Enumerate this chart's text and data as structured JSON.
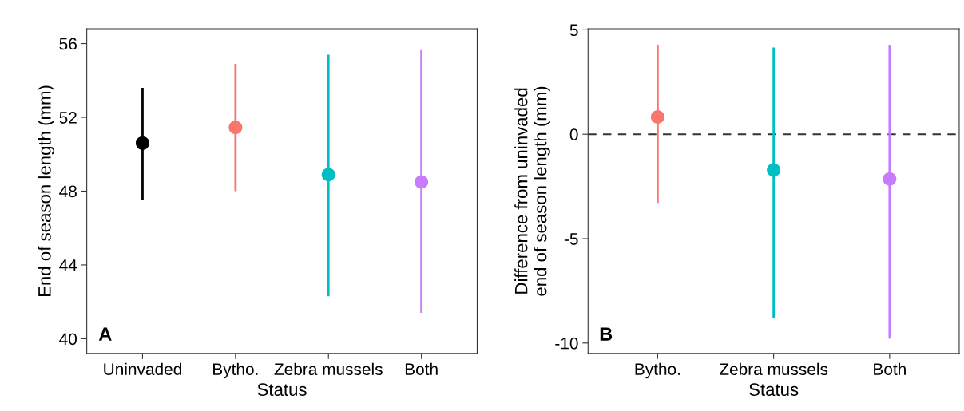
{
  "chart_data": [
    {
      "type": "scatter",
      "xlabel": "Status",
      "ylabel": "End of season length (mm)",
      "annotations": [
        "A"
      ],
      "categories": [
        "Uninvaded",
        "Bytho.",
        "Zebra mussels",
        "Both"
      ],
      "values": [
        50.6,
        51.45,
        48.9,
        48.5
      ],
      "colors": [
        "#000000",
        "#f8766d",
        "#00bfc4",
        "#c77cff"
      ],
      "errors": [
        [
          47.55,
          53.6
        ],
        [
          48.0,
          54.9
        ],
        [
          42.3,
          55.4
        ],
        [
          41.4,
          55.65
        ]
      ],
      "ylim": [
        39.2,
        56.8
      ],
      "yticks": [
        40,
        44,
        48,
        52,
        56
      ],
      "grid": false,
      "marker": "circle"
    },
    {
      "type": "scatter",
      "xlabel": "Status",
      "ylabel": "Difference from uninvaded\nend of season length (mm)",
      "annotations": [
        "B"
      ],
      "categories": [
        "Bytho.",
        "Zebra mussels",
        "Both"
      ],
      "values": [
        0.83,
        -1.71,
        -2.14
      ],
      "colors": [
        "#f8766d",
        "#00bfc4",
        "#c77cff"
      ],
      "errors": [
        [
          -3.29,
          4.29
        ],
        [
          -8.82,
          4.15
        ],
        [
          -9.79,
          4.25
        ]
      ],
      "ylim": [
        -10.5,
        5.05
      ],
      "yticks": [
        {
          "value": -10,
          "label": "-10"
        },
        {
          "value": -5,
          "label": "-5"
        },
        0,
        5
      ],
      "ref_lines": [
        {
          "axis": "y",
          "value": 0,
          "color": "#333333",
          "line_style": "dashed"
        }
      ],
      "grid": false,
      "marker": "circle"
    }
  ]
}
